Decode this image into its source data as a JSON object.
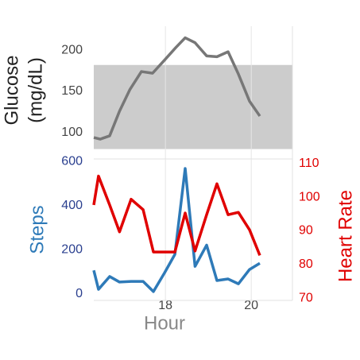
{
  "chart_data": [
    {
      "type": "line",
      "ylabel": [
        "Glucose",
        "(mg/dL)"
      ],
      "x": [
        16.33,
        16.48,
        16.7,
        16.93,
        17.17,
        17.44,
        17.7,
        17.98,
        18.24,
        18.46,
        18.69,
        18.96,
        19.2,
        19.46,
        19.7,
        19.96,
        20.2
      ],
      "series": [
        {
          "color": "#777777",
          "values": [
            94,
            92,
            96,
            126,
            152,
            174,
            172,
            188,
            203,
            215,
            209,
            193,
            192,
            198,
            171,
            138,
            120
          ]
        }
      ],
      "band": [
        80,
        182
      ],
      "band_color": "#cccccc",
      "xlim": [
        16.33,
        20.96
      ],
      "xticks": [
        18,
        20
      ],
      "ylim": [
        68,
        229
      ],
      "yticks": [
        100,
        150,
        200
      ],
      "grid": true
    },
    {
      "type": "line",
      "ylabel": "Steps",
      "y2label": "Heart Rate",
      "xlabel": "Hour",
      "x": [
        16.33,
        16.44,
        16.7,
        16.93,
        17.2,
        17.48,
        17.72,
        17.98,
        18.22,
        18.46,
        18.69,
        18.96,
        19.2,
        19.46,
        19.7,
        19.96,
        20.2
      ],
      "series": [
        {
          "color": "#2e7ab8",
          "values": [
            107,
            21,
            79,
            54,
            57,
            57,
            11,
            96,
            179,
            568,
            125,
            221,
            61,
            68,
            46,
            111,
            139
          ]
        },
        {
          "color": "#e00000",
          "axis": "y2",
          "values": [
            97.7,
            106.3,
            97.7,
            89.7,
            99.4,
            96.3,
            83.7,
            83.7,
            83.7,
            95.3,
            84,
            94.8,
            104,
            94.8,
            95.5,
            90.3,
            82.7
          ]
        }
      ],
      "xlim": [
        16.33,
        20.96
      ],
      "xticks": [
        18,
        20
      ],
      "ylim": [
        -29,
        611
      ],
      "yticks": [
        0,
        200,
        400,
        600
      ],
      "y2lim": [
        69.3,
        111.4
      ],
      "y2ticks": [
        70,
        80,
        90,
        100,
        110
      ],
      "grid": true
    }
  ]
}
